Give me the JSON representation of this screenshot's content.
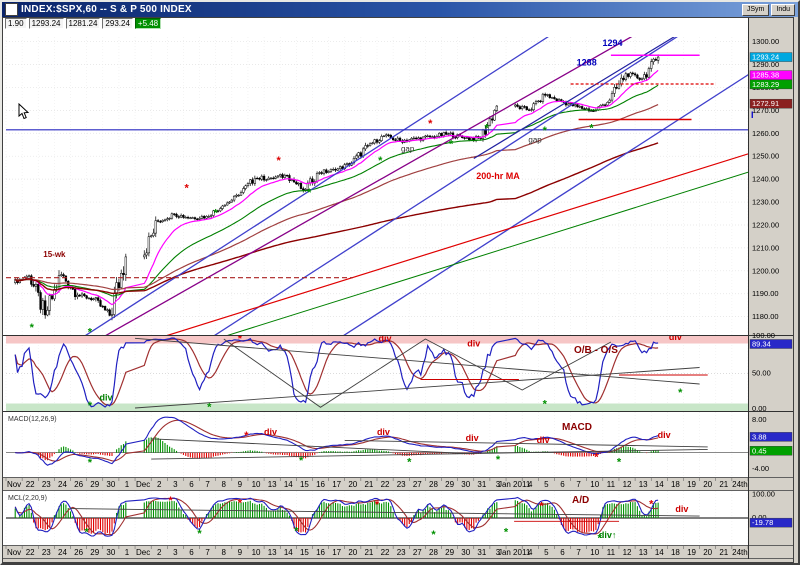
{
  "window": {
    "title": "INDEX:$SPX,60 -- S & P 500 INDEX",
    "buttons": [
      {
        "label": "JSym"
      },
      {
        "label": "Indu"
      }
    ]
  },
  "quote_bar": {
    "values": [
      "1.90",
      "1293.24",
      "1281.24",
      "293.24"
    ],
    "change": "+5.48",
    "change_bg": "#009000"
  },
  "price_axis": {
    "ticks": [
      "1300.00",
      "1290.00",
      "1280.00",
      "1270.00",
      "1260.00",
      "1250.00",
      "1240.00",
      "1230.00",
      "1220.00",
      "1210.00",
      "1200.00",
      "1190.00",
      "1180.00"
    ],
    "badges": [
      {
        "text": "1293.24",
        "v": 1293.24,
        "bg": "#00a8e0",
        "fg": "#ffffff"
      },
      {
        "text": "1285.38",
        "v": 1285.38,
        "bg": "#ff00ff",
        "fg": "#ffffff"
      },
      {
        "text": "1283.29",
        "v": 1283.29,
        "bg": "#00a000",
        "fg": "#ffffff"
      },
      {
        "text": "1272.91",
        "v": 1272.91,
        "bg": "#8b2020",
        "fg": "#ffffff"
      }
    ],
    "note": {
      "text": "I",
      "v": 1268,
      "color": "#0000cc"
    }
  },
  "date_labels": [
    "Nov",
    "22",
    "23",
    "24",
    "26",
    "29",
    "30",
    "1",
    "Dec",
    "2",
    "3",
    "6",
    "7",
    "8",
    "9",
    "10",
    "13",
    "14",
    "15",
    "16",
    "17",
    "20",
    "21",
    "22",
    "23",
    "27",
    "28",
    "29",
    "30",
    "31",
    "3",
    "Jan 2011",
    "4",
    "5",
    "6",
    "7",
    "10",
    "11",
    "12",
    "13",
    "14",
    "18",
    "19",
    "20",
    "21",
    "24th"
  ],
  "chart_data": {
    "type": "candlestick",
    "symbol": "INDEX:$SPX",
    "interval": "60 minute",
    "title": "S & P 500 INDEX",
    "price_range": [
      1172,
      1302
    ],
    "dates": [
      "Nov 22",
      "Nov 23",
      "Nov 24",
      "Nov 26",
      "Nov 29",
      "Nov 30",
      "Dec 1",
      "Dec 2",
      "Dec 3",
      "Dec 6",
      "Dec 7",
      "Dec 8",
      "Dec 9",
      "Dec 10",
      "Dec 13",
      "Dec 14",
      "Dec 15",
      "Dec 16",
      "Dec 17",
      "Dec 20",
      "Dec 21",
      "Dec 22",
      "Dec 23",
      "Dec 27",
      "Dec 28",
      "Dec 29",
      "Dec 30",
      "Dec 31",
      "Jan 3",
      "Jan 4",
      "Jan 5",
      "Jan 6",
      "Jan 7",
      "Jan 10",
      "Jan 11",
      "Jan 12",
      "Jan 13",
      "Jan 14"
    ],
    "daily_closes": [
      1197.84,
      1180.73,
      1198.35,
      1189.4,
      1187.76,
      1180.55,
      1206.07,
      1221.53,
      1224.71,
      1223.12,
      1223.75,
      1228.28,
      1233.0,
      1240.4,
      1240.46,
      1241.59,
      1235.23,
      1242.87,
      1243.91,
      1247.08,
      1254.6,
      1258.84,
      1256.77,
      1257.54,
      1258.51,
      1259.78,
      1257.88,
      1257.64,
      1271.87,
      1270.2,
      1276.56,
      1273.85,
      1271.5,
      1269.75,
      1274.48,
      1285.96,
      1283.76,
      1293.24
    ],
    "moving_averages": [
      {
        "name": "fast-ema",
        "period": 14,
        "kind": "ema",
        "color": "#ff00ff",
        "w": 1.2
      },
      {
        "name": "mid-ema",
        "period": 40,
        "kind": "ema",
        "color": "#008000",
        "w": 1.1
      },
      {
        "name": "slow-ema",
        "period": 90,
        "kind": "ema",
        "color": "#a04040",
        "w": 1.2
      },
      {
        "name": "200-hr-ma",
        "period": 200,
        "kind": "sma",
        "color": "#8b0000",
        "w": 1.4
      }
    ],
    "trend_lines": [
      {
        "pts": [
          [
            3,
            1163
          ],
          [
            36,
            1313
          ]
        ],
        "color": "#4040cc",
        "w": 1.3
      },
      {
        "pts": [
          [
            11,
            1163
          ],
          [
            44,
            1313
          ]
        ],
        "color": "#4040cc",
        "w": 1.3
      },
      {
        "pts": [
          [
            19,
            1163
          ],
          [
            47,
            1290
          ]
        ],
        "color": "#4040cc",
        "w": 1.3
      },
      {
        "pts": [
          [
            4,
            1163
          ],
          [
            40,
            1307
          ]
        ],
        "color": "#880088",
        "w": 1.3
      },
      {
        "pts": [
          [
            29,
            1249
          ],
          [
            43.5,
            1311
          ]
        ],
        "color": "#2020a0",
        "w": 1.2
      },
      {
        "pts": [
          [
            0,
            1261.5
          ],
          [
            46,
            1261.5
          ]
        ],
        "color": "#2828c0",
        "w": 1.2
      },
      {
        "pts": [
          [
            6,
            1163
          ],
          [
            46,
            1251
          ]
        ],
        "color": "#e00000",
        "w": 1.2
      },
      {
        "pts": [
          [
            12,
            1168
          ],
          [
            46,
            1243
          ]
        ],
        "color": "#008000",
        "w": 1
      },
      {
        "pts": [
          [
            0,
            1197
          ],
          [
            21.5,
            1197
          ]
        ],
        "color": "#aa2020",
        "w": 1.2,
        "dash": "5,3"
      },
      {
        "pts": [
          [
            35,
            1281.5
          ],
          [
            44,
            1281.5
          ]
        ],
        "color": "#dd0000",
        "w": 1.2,
        "dash": "3,2"
      },
      {
        "pts": [
          [
            35.5,
            1266
          ],
          [
            42.5,
            1266
          ]
        ],
        "color": "#dd0000",
        "w": 1.5
      },
      {
        "pts": [
          [
            37.5,
            1294
          ],
          [
            43,
            1294
          ]
        ],
        "color": "#ff00ff",
        "w": 1.5
      }
    ],
    "annotations": [
      {
        "d": 3.0,
        "p": 1206,
        "text": "15-wk",
        "color": "#8b0000",
        "size": 8,
        "bold": true
      },
      {
        "d": 24.9,
        "p": 1252,
        "text": "gap",
        "color": "#303030",
        "size": 8,
        "bold": false
      },
      {
        "d": 32.8,
        "p": 1256,
        "text": "gap",
        "color": "#303030",
        "size": 8,
        "bold": false
      },
      {
        "d": 30.5,
        "p": 1240,
        "text": "200-hr MA",
        "color": "#dd0000",
        "size": 9,
        "bold": true
      },
      {
        "d": 37.6,
        "p": 1298,
        "text": "1294",
        "color": "#0000bb",
        "size": 9,
        "bold": true
      },
      {
        "d": 36.0,
        "p": 1289.5,
        "text": "1288",
        "color": "#0000bb",
        "size": 9,
        "bold": true
      }
    ],
    "stars": {
      "green": [
        [
          1.6,
          1175
        ],
        [
          5.2,
          1173
        ],
        [
          13,
          1225
        ],
        [
          18.8,
          1234
        ],
        [
          23.2,
          1248
        ],
        [
          27.6,
          1255
        ],
        [
          29.8,
          1262
        ],
        [
          33.4,
          1261
        ],
        [
          36.3,
          1262
        ]
      ],
      "red": [
        [
          11.2,
          1236
        ],
        [
          16.9,
          1248
        ],
        [
          26.3,
          1264
        ]
      ]
    },
    "panels": {
      "oscillator": {
        "label": "O/B - O/S",
        "range": [
          0,
          100
        ],
        "overbought": 90,
        "oversold": 10,
        "lines": [
          {
            "pts": [
              [
                8,
                97
              ],
              [
                43,
                36
              ]
            ],
            "color": "#404040"
          },
          {
            "pts": [
              [
                8,
                4
              ],
              [
                43,
                58
              ]
            ],
            "color": "#404040"
          },
          {
            "pts": [
              [
                13.5,
                96
              ],
              [
                19.5,
                5
              ],
              [
                26,
                96
              ],
              [
                32,
                28
              ],
              [
                37.5,
                92
              ]
            ],
            "color": "#404040"
          },
          {
            "pts": [
              [
                25.7,
                42
              ],
              [
                31.8,
                42
              ]
            ],
            "color": "#cc0000"
          },
          {
            "pts": [
              [
                38,
                48
              ],
              [
                43.5,
                48
              ]
            ],
            "color": "#cc0000"
          }
        ],
        "divs": [
          {
            "d": 23.5,
            "v": 93,
            "text": "div",
            "color": "#cc0000"
          },
          {
            "d": 29,
            "v": 86,
            "text": "div",
            "color": "#cc0000"
          },
          {
            "d": 41.5,
            "v": 95,
            "text": "div",
            "color": "#cc0000"
          },
          {
            "d": 6.2,
            "v": 14,
            "text": "div",
            "color": "#008000"
          }
        ],
        "stars_green": [
          [
            5.2,
            7
          ],
          [
            12.6,
            5
          ],
          [
            33.4,
            9
          ],
          [
            41.8,
            24
          ]
        ],
        "stars_red": [
          [
            14.5,
            96
          ]
        ],
        "axis": {
          "ticks": [
            [
              "100.00",
              100
            ],
            [
              "50.00",
              50
            ],
            [
              "0.00",
              0
            ]
          ],
          "badges": [
            {
              "text": "89.34",
              "v": 89.34,
              "bg": "#2828c8",
              "fg": "#ffffff"
            }
          ]
        }
      },
      "macd": {
        "label": "MACD",
        "param_label": "MACD(12,26,9)",
        "range": [
          -6,
          10
        ],
        "lines": [
          {
            "pts": [
              [
                9,
                3.4
              ],
              [
                29,
                -0.3
              ]
            ],
            "color": "#404040"
          },
          {
            "pts": [
              [
                21,
                3.0
              ],
              [
                43.5,
                1.4
              ]
            ],
            "color": "#404040"
          },
          {
            "pts": [
              [
                9,
                -1.6
              ],
              [
                43.5,
                0.8
              ]
            ],
            "color": "#404040"
          }
        ],
        "divs": [
          {
            "d": 16.4,
            "v": 4.3,
            "text": "div",
            "color": "#cc0000"
          },
          {
            "d": 23.4,
            "v": 4.3,
            "text": "div",
            "color": "#cc0000"
          },
          {
            "d": 28.9,
            "v": 2.9,
            "text": "div",
            "color": "#cc0000"
          },
          {
            "d": 33.3,
            "v": 2.4,
            "text": "div",
            "color": "#cc0000"
          },
          {
            "d": 40.8,
            "v": 3.6,
            "text": "div",
            "color": "#cc0000"
          }
        ],
        "stars_green": [
          [
            5.2,
            -2.6
          ],
          [
            18.3,
            -2.0
          ],
          [
            25,
            -2.4
          ],
          [
            30.5,
            -1.8
          ],
          [
            38,
            -2.4
          ]
        ],
        "stars_red": [
          [
            14.9,
            4.1
          ],
          [
            36.6,
            -1.2
          ]
        ],
        "axis": {
          "ticks": [
            [
              "8.00",
              8
            ],
            [
              "0.00",
              0
            ],
            [
              "-4.00",
              -4
            ]
          ],
          "badges": [
            {
              "text": "3.88",
              "v": 3.88,
              "bg": "#2828c8",
              "fg": "#ffffff"
            },
            {
              "text": "0.45",
              "v": 0.45,
              "bg": "#00a000",
              "fg": "#ffffff"
            }
          ]
        }
      },
      "ad": {
        "label": "A/D",
        "param_label": "MCL(2,20,9)",
        "range": [
          -115,
          115
        ],
        "lines": [
          {
            "pts": [
              [
                4,
                40
              ],
              [
                43,
                8
              ]
            ],
            "color": "#404040"
          },
          {
            "pts": [
              [
                31.5,
                -14
              ],
              [
                38,
                -14
              ]
            ],
            "color": "#cc0000"
          }
        ],
        "divs": [
          {
            "d": 41.9,
            "v": 25,
            "text": "div",
            "color": "#cc0000"
          },
          {
            "d": 37.3,
            "v": -85,
            "text": "div↑",
            "color": "#008000"
          }
        ],
        "stars_green": [
          [
            5,
            -62
          ],
          [
            12,
            -68
          ],
          [
            18,
            -58
          ],
          [
            26.5,
            -72
          ],
          [
            31,
            -62
          ],
          [
            36.8,
            -88
          ]
        ],
        "stars_red": [
          [
            10.2,
            72
          ],
          [
            14.5,
            62
          ],
          [
            23,
            55
          ],
          [
            33.2,
            50
          ],
          [
            40,
            58
          ]
        ],
        "axis": {
          "ticks": [
            [
              "100.00",
              100
            ],
            [
              "0.00",
              0
            ]
          ],
          "badges": [
            {
              "text": "-19.78",
              "v": -19.78,
              "bg": "#2828c8",
              "fg": "#ffffff"
            }
          ]
        }
      }
    }
  }
}
